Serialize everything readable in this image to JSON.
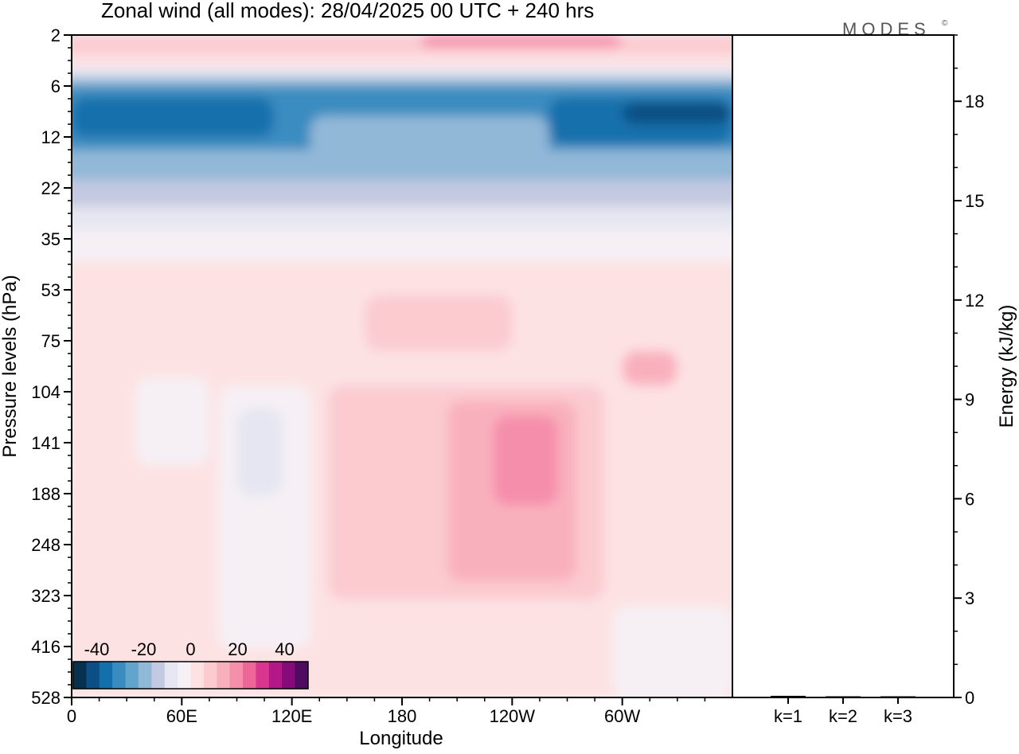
{
  "chart_data": [
    {
      "type": "heatmap",
      "title": "Zonal wind (all modes):  28/04/2025  00 UTC  + 240 hrs",
      "xlabel": "Longitude",
      "ylabel": "Pressure levels (hPa)",
      "x_ticks": [
        "0",
        "60E",
        "120E",
        "180",
        "120W",
        "60W"
      ],
      "x_range_deg_east": [
        0,
        360
      ],
      "y_ticks": [
        "2",
        "6",
        "12",
        "22",
        "35",
        "53",
        "75",
        "104",
        "141",
        "188",
        "248",
        "323",
        "416",
        "528"
      ],
      "y_order": "pressure increasing downward",
      "colorbar": {
        "tick_labels": [
          "-40",
          "-20",
          "0",
          "20",
          "40"
        ],
        "range": [
          -50,
          50
        ],
        "colors": [
          "#08304f",
          "#0b4f84",
          "#1470ac",
          "#3a8cc0",
          "#63a4cc",
          "#92b8d8",
          "#c3c9e0",
          "#e5e6f1",
          "#f6f0f5",
          "#fde2e3",
          "#fbcbd0",
          "#f9b0bd",
          "#f58eab",
          "#ee659a",
          "#d9378f",
          "#b51886",
          "#860a7a",
          "#4f0a62"
        ]
      },
      "regions": [
        {
          "lon": [
            0,
            360
          ],
          "p": [
            2,
            3
          ],
          "value": 8
        },
        {
          "lon": [
            190,
            300
          ],
          "p": [
            2,
            2.6
          ],
          "value": 22
        },
        {
          "lon": [
            0,
            360
          ],
          "p": [
            3,
            4
          ],
          "value": 0
        },
        {
          "lon": [
            0,
            360
          ],
          "p": [
            4,
            5
          ],
          "value": -10
        },
        {
          "lon": [
            0,
            360
          ],
          "p": [
            5,
            6
          ],
          "value": -20
        },
        {
          "lon": [
            0,
            360
          ],
          "p": [
            6,
            14
          ],
          "value": -33
        },
        {
          "lon": [
            0,
            110
          ],
          "p": [
            7,
            12
          ],
          "value": -38
        },
        {
          "lon": [
            260,
            360
          ],
          "p": [
            7,
            13
          ],
          "value": -38
        },
        {
          "lon": [
            300,
            360
          ],
          "p": [
            7.5,
            10
          ],
          "value": -43
        },
        {
          "lon": [
            130,
            260
          ],
          "p": [
            9,
            16
          ],
          "value": -22
        },
        {
          "lon": [
            0,
            360
          ],
          "p": [
            14,
            20
          ],
          "value": -22
        },
        {
          "lon": [
            0,
            360
          ],
          "p": [
            20,
            26
          ],
          "value": -15
        },
        {
          "lon": [
            0,
            360
          ],
          "p": [
            26,
            32
          ],
          "value": -8
        },
        {
          "lon": [
            0,
            360
          ],
          "p": [
            32,
            42
          ],
          "value": -3
        },
        {
          "lon": [
            0,
            360
          ],
          "p": [
            42,
            528
          ],
          "value": 1
        },
        {
          "lon": [
            0,
            65
          ],
          "p": [
            48,
            75
          ],
          "value": 5
        },
        {
          "lon": [
            140,
            360
          ],
          "p": [
            50,
            100
          ],
          "value": 5
        },
        {
          "lon": [
            160,
            240
          ],
          "p": [
            55,
            80
          ],
          "value": 10
        },
        {
          "lon": [
            300,
            330
          ],
          "p": [
            80,
            100
          ],
          "value": 12
        },
        {
          "lon": [
            140,
            290
          ],
          "p": [
            100,
            330
          ],
          "value": 6
        },
        {
          "lon": [
            205,
            275
          ],
          "p": [
            110,
            300
          ],
          "value": 12
        },
        {
          "lon": [
            230,
            265
          ],
          "p": [
            120,
            200
          ],
          "value": 20
        },
        {
          "lon": [
            35,
            75
          ],
          "p": [
            95,
            160
          ],
          "value": -5
        },
        {
          "lon": [
            80,
            130
          ],
          "p": [
            100,
            420
          ],
          "value": -5
        },
        {
          "lon": [
            90,
            115
          ],
          "p": [
            115,
            190
          ],
          "value": -10
        },
        {
          "lon": [
            295,
            360
          ],
          "p": [
            340,
            528
          ],
          "value": -4
        }
      ]
    },
    {
      "type": "bar",
      "categories": [
        "k=1",
        "k=2",
        "k=3"
      ],
      "values": [
        0.05,
        0.02,
        0.01
      ],
      "ylabel": "Energy (kJ/kg)",
      "ylim": [
        0,
        20
      ],
      "y_ticks": [
        "0",
        "3",
        "6",
        "9",
        "12",
        "15",
        "18"
      ]
    }
  ],
  "logo_text": "MODES",
  "logo_mark": "©"
}
